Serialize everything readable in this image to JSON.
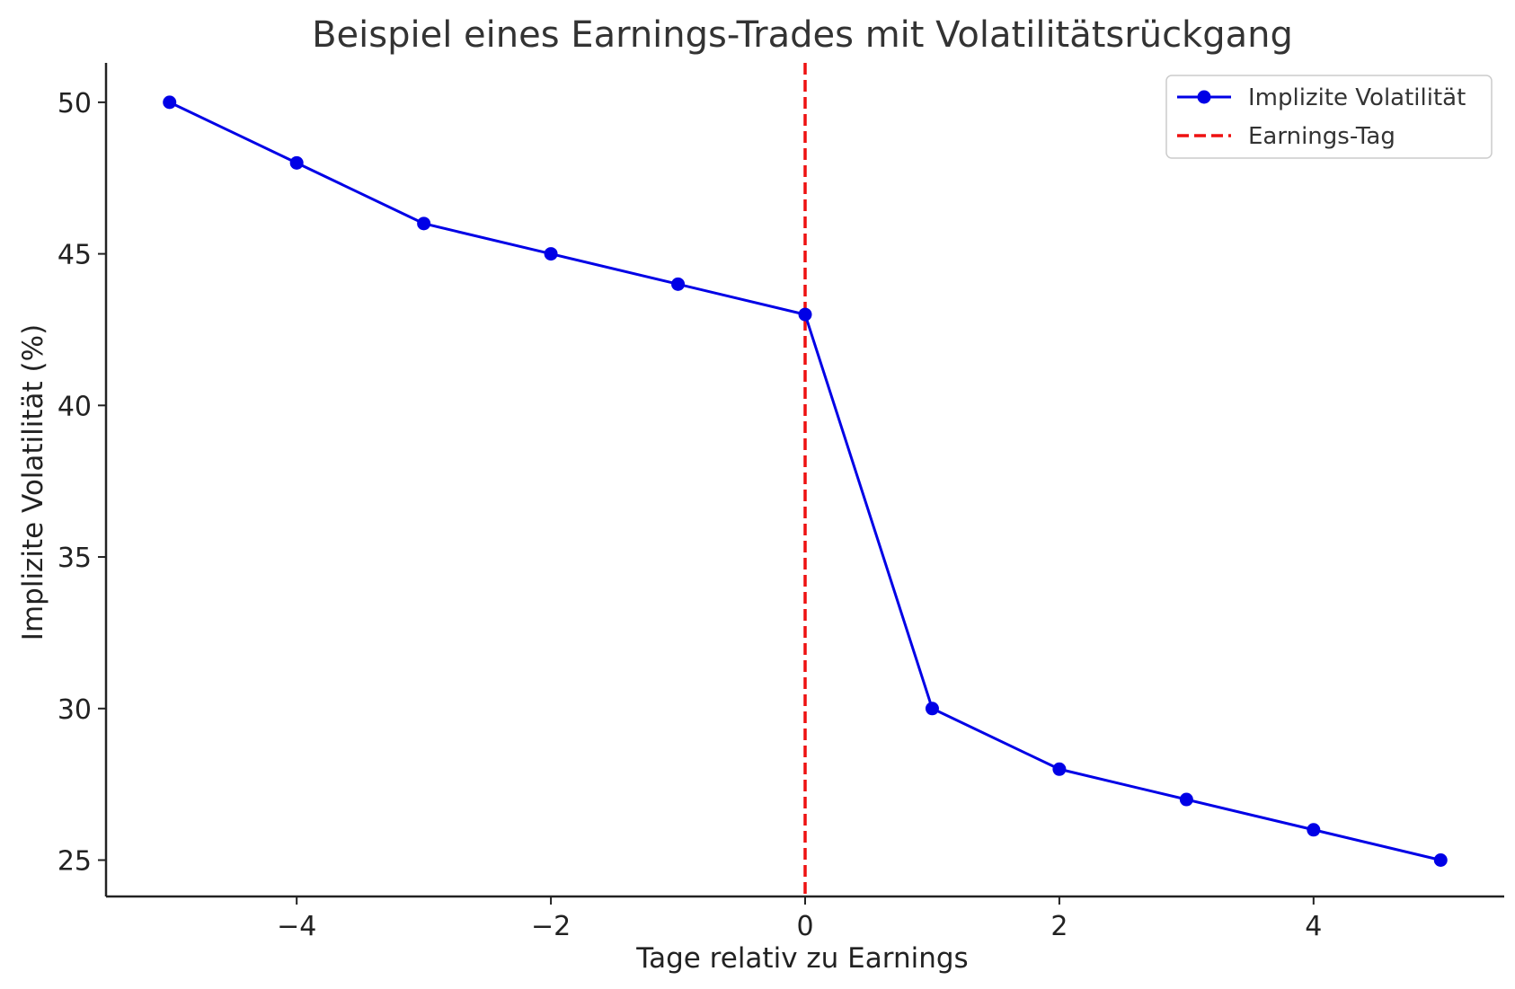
{
  "colors": {
    "series": "#0000e6",
    "marker_line": "#ee1111",
    "axis": "#222222",
    "legend_border": "#cccccc",
    "background": "#ffffff"
  },
  "chart_data": {
    "type": "line",
    "title": "Beispiel eines Earnings-Trades mit Volatilitätsrückgang",
    "xlabel": "Tage relativ zu Earnings",
    "ylabel": "Implizite Volatilität (%)",
    "xlim": [
      -5.5,
      5.5
    ],
    "ylim": [
      23.8,
      51.3
    ],
    "xticks": [
      -4,
      -2,
      0,
      2,
      4
    ],
    "xtick_labels": [
      "−4",
      "−2",
      "0",
      "2",
      "4"
    ],
    "yticks": [
      25,
      30,
      35,
      40,
      45,
      50
    ],
    "ytick_labels": [
      "25",
      "30",
      "35",
      "40",
      "45",
      "50"
    ],
    "grid": false,
    "legend_position": "top-right",
    "series": [
      {
        "name": "Implizite Volatilität",
        "x": [
          -5,
          -4,
          -3,
          -2,
          -1,
          0,
          1,
          2,
          3,
          4,
          5
        ],
        "values": [
          50,
          48,
          46,
          45,
          44,
          43,
          30,
          28,
          27,
          26,
          25
        ],
        "style": "solid-with-markers"
      }
    ],
    "vlines": [
      {
        "name": "Earnings-Tag",
        "x": 0,
        "style": "dashed"
      }
    ]
  }
}
